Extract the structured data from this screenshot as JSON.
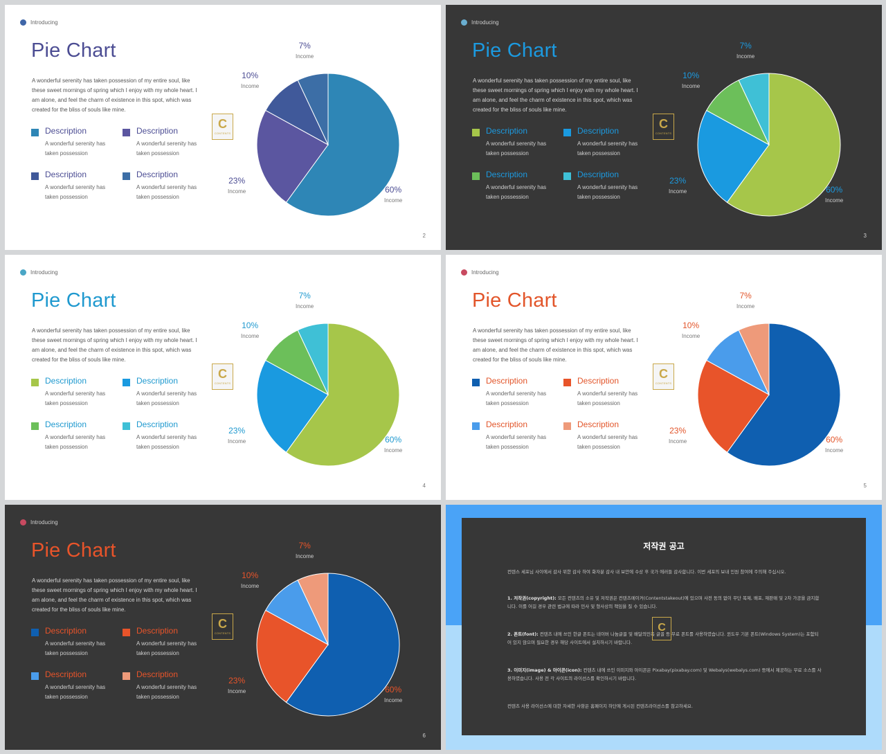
{
  "common": {
    "intro_label": "Introducing",
    "title": "Pie Chart",
    "body": "A wonderful serenity has taken possession of my entire soul, like these sweet mornings of spring which I enjoy with my whole heart. I am alone, and feel the charm of existence in this spot, which was created for the bliss of souls like mine.",
    "desc_title": "Description",
    "desc_text": "A wonderful serenity has taken possession",
    "income_label": "Income",
    "logo_letter": "C",
    "logo_text": "CONTENTS"
  },
  "chart_data": [
    {
      "type": "pie",
      "slide": "2",
      "title": "Pie Chart",
      "slices": [
        {
          "label": "Income",
          "value": 60
        },
        {
          "label": "Income",
          "value": 23
        },
        {
          "label": "Income",
          "value": 10
        },
        {
          "label": "Income",
          "value": 7
        }
      ],
      "value_labels": [
        "60%",
        "23%",
        "10%",
        "7%"
      ]
    },
    {
      "type": "pie",
      "slide": "3",
      "title": "Pie Chart",
      "slices": [
        {
          "label": "Income",
          "value": 60
        },
        {
          "label": "Income",
          "value": 23
        },
        {
          "label": "Income",
          "value": 10
        },
        {
          "label": "Income",
          "value": 7
        }
      ],
      "value_labels": [
        "60%",
        "23%",
        "10%",
        "7%"
      ]
    },
    {
      "type": "pie",
      "slide": "4",
      "title": "Pie Chart",
      "slices": [
        {
          "label": "Income",
          "value": 60
        },
        {
          "label": "Income",
          "value": 23
        },
        {
          "label": "Income",
          "value": 10
        },
        {
          "label": "Income",
          "value": 7
        }
      ],
      "value_labels": [
        "60%",
        "23%",
        "10%",
        "7%"
      ]
    },
    {
      "type": "pie",
      "slide": "5",
      "title": "Pie Chart",
      "slices": [
        {
          "label": "Income",
          "value": 60
        },
        {
          "label": "Income",
          "value": 23
        },
        {
          "label": "Income",
          "value": 10
        },
        {
          "label": "Income",
          "value": 7
        }
      ],
      "value_labels": [
        "60%",
        "23%",
        "10%",
        "7%"
      ]
    },
    {
      "type": "pie",
      "slide": "6",
      "title": "Pie Chart",
      "slices": [
        {
          "label": "Income",
          "value": 60
        },
        {
          "label": "Income",
          "value": 23
        },
        {
          "label": "Income",
          "value": 10
        },
        {
          "label": "Income",
          "value": 7
        }
      ],
      "value_labels": [
        "60%",
        "23%",
        "10%",
        "7%"
      ]
    }
  ],
  "slides": [
    {
      "page": "2",
      "theme": "light",
      "title_color": "#4c4d93",
      "accent": "#4c4d93",
      "dot": "#3f66a8",
      "colors": [
        "#2e86b6",
        "#5b56a0",
        "#40599a",
        "#3c6ea6"
      ]
    },
    {
      "page": "3",
      "theme": "dark",
      "title_color": "#1c9ae0",
      "accent": "#1c9ae0",
      "dot": "#6aaed0",
      "colors": [
        "#a6c64a",
        "#1a9ae0",
        "#6cbf5a",
        "#3fc0d6"
      ]
    },
    {
      "page": "4",
      "theme": "light",
      "title_color": "#1f99cf",
      "accent": "#1f99cf",
      "dot": "#4aa6c6",
      "colors": [
        "#a6c64a",
        "#1a9ae0",
        "#6cbf5a",
        "#3fc0d6"
      ]
    },
    {
      "page": "5",
      "theme": "light",
      "title_color": "#e2552a",
      "accent": "#e2552a",
      "dot": "#c84a60",
      "colors": [
        "#0f5fb0",
        "#e8542a",
        "#4a9ceb",
        "#ee9a7a"
      ]
    },
    {
      "page": "6",
      "theme": "dark",
      "title_color": "#e8542a",
      "accent": "#e8542a",
      "dot": "#c84a60",
      "colors": [
        "#0f5fb0",
        "#e8542a",
        "#4a9ceb",
        "#ee9a7a"
      ]
    }
  ],
  "copyright": {
    "title": "저작권 공고",
    "intro": "컨텐스 세포님 사이에서 감사 위한 감사 하여 화자분 감사 내 보안에 수상 후 국가 에러들 감사합니다. 이번 세포의 보내 인원 참여에 주의해 주십시오.",
    "s1_head": "1. 저작권(copyright):",
    "s1": "모든 컨텐츠의 소유 및 저작권은 컨텐츠메이커(Contentstakeout)에 있으며 사전 동의 없이 무단 복제, 배포, 재판매 및 2차 가공을 금지합니다. 이를 어길 경우 관련 법규에 따라 민사 및 형사상의 책임을 질 수 있습니다.",
    "s2_head": "2. 폰트(font):",
    "s2": "컨텐츠 내에 쓰인 한글 폰트는 네이버 나눔글꼴 및 배달의민족 글꼴 등 무료 폰트를 사용하였습니다. 윈도우 기본 폰트(Windows System)는 포함되어 있지 않으며 필요한 경우 해당 사이트에서 설치하시기 바랍니다.",
    "s3_head": "3. 이미지(image) & 아이콘(icon):",
    "s3": "컨텐츠 내에 쓰인 이미지와 아이콘은 Pixabay(pixabay.com) 및 Webalys(webalys.com) 등에서 제공하는 무료 소스를 사용하였습니다. 사용 전 각 사이트의 라이선스를 확인하시기 바랍니다.",
    "outro": "컨텐츠 사용 라이선스에 대한 자세한 사항은 홈페이지 하단에 게시된 컨텐츠라이선스를 참고하세요.",
    "logo_letter": "C"
  }
}
